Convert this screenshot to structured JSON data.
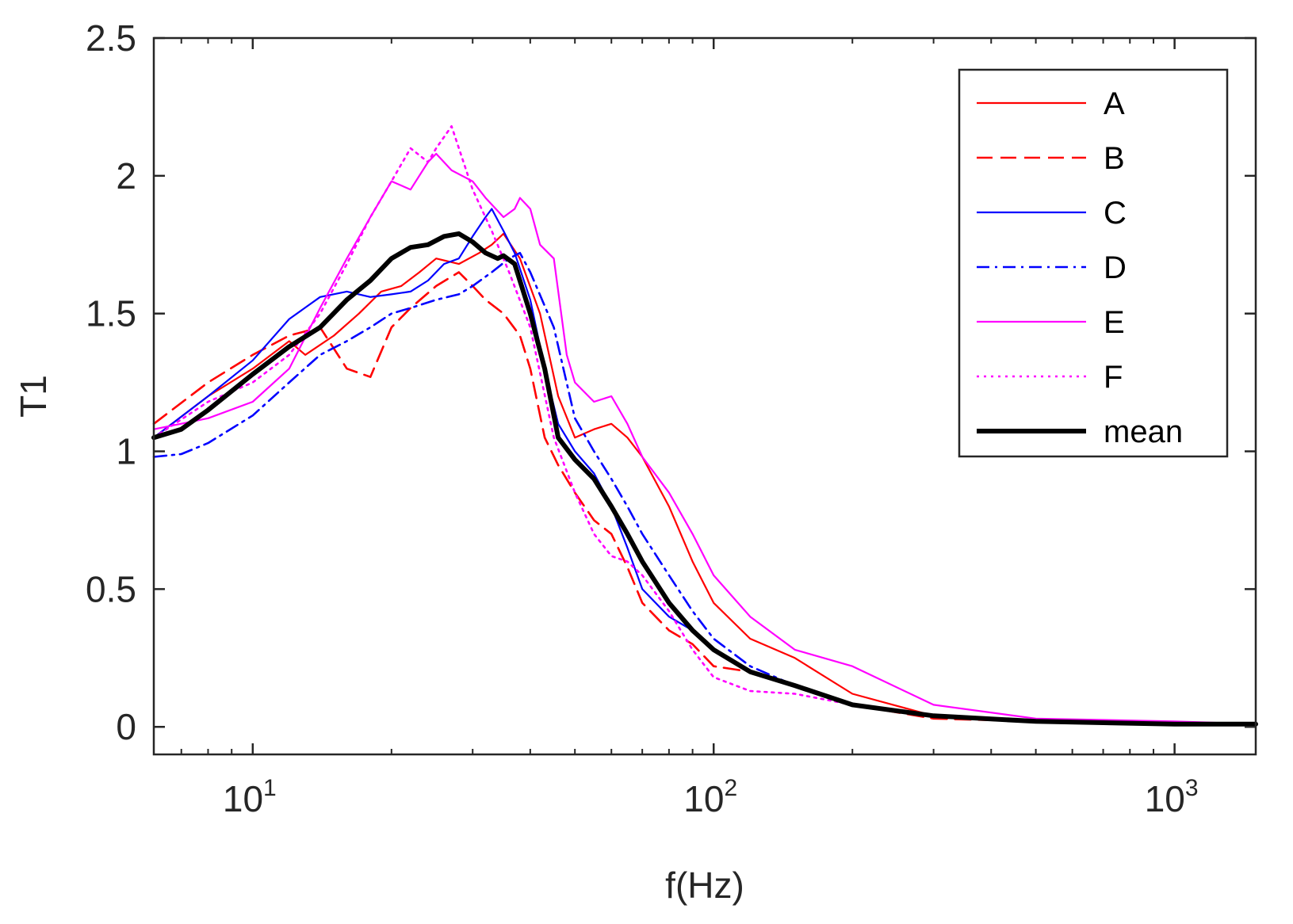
{
  "chart_data": {
    "type": "line",
    "xscale": "log",
    "xlabel": "f(Hz)",
    "ylabel": "T1",
    "xlim": [
      6.1,
      1500
    ],
    "ylim": [
      -0.1,
      2.5
    ],
    "xticks": [
      {
        "base": "10",
        "exp": "1",
        "value": 10
      },
      {
        "base": "10",
        "exp": "2",
        "value": 100
      },
      {
        "base": "10",
        "exp": "3",
        "value": 1000
      }
    ],
    "yticks": [
      {
        "label": "0",
        "value": 0
      },
      {
        "label": "0.5",
        "value": 0.5
      },
      {
        "label": "1",
        "value": 1
      },
      {
        "label": "1.5",
        "value": 1.5
      },
      {
        "label": "2",
        "value": 2
      },
      {
        "label": "2.5",
        "value": 2.5
      }
    ],
    "legend_position": "top-right",
    "series": [
      {
        "name": "A",
        "color": "#ff0000",
        "style": "solid",
        "x": [
          6.1,
          8,
          10,
          12,
          13,
          15,
          17,
          19,
          21,
          23,
          25,
          28,
          31,
          33,
          35,
          38,
          42,
          46,
          50,
          55,
          60,
          65,
          70,
          80,
          90,
          100,
          120,
          150,
          200,
          300,
          500,
          1000,
          1500
        ],
        "y": [
          1.05,
          1.2,
          1.3,
          1.4,
          1.35,
          1.42,
          1.5,
          1.58,
          1.6,
          1.65,
          1.7,
          1.68,
          1.72,
          1.75,
          1.79,
          1.7,
          1.5,
          1.2,
          1.05,
          1.08,
          1.1,
          1.05,
          0.98,
          0.8,
          0.6,
          0.45,
          0.32,
          0.25,
          0.12,
          0.04,
          0.02,
          0.01,
          0.01
        ]
      },
      {
        "name": "B",
        "color": "#ff0000",
        "style": "dashed",
        "x": [
          6.1,
          8,
          10,
          12,
          14,
          16,
          18,
          20,
          22,
          25,
          28,
          30,
          32,
          35,
          38,
          40,
          43,
          46,
          50,
          55,
          60,
          65,
          70,
          80,
          90,
          100,
          120,
          150,
          200,
          300,
          500,
          1000,
          1500
        ],
        "y": [
          1.1,
          1.25,
          1.35,
          1.42,
          1.45,
          1.3,
          1.27,
          1.45,
          1.52,
          1.6,
          1.65,
          1.6,
          1.55,
          1.5,
          1.42,
          1.3,
          1.05,
          0.95,
          0.85,
          0.75,
          0.7,
          0.58,
          0.45,
          0.35,
          0.3,
          0.22,
          0.2,
          0.15,
          0.08,
          0.03,
          0.02,
          0.01,
          0.01
        ]
      },
      {
        "name": "C",
        "color": "#0000ff",
        "style": "solid",
        "x": [
          6.1,
          8,
          10,
          12,
          14,
          16,
          18,
          20,
          22,
          24,
          26,
          28,
          30,
          32,
          33,
          35,
          37,
          40,
          43,
          46,
          50,
          55,
          60,
          65,
          70,
          80,
          90,
          100,
          120,
          150,
          200,
          300,
          500,
          1000,
          1500
        ],
        "y": [
          1.05,
          1.2,
          1.33,
          1.48,
          1.56,
          1.58,
          1.56,
          1.57,
          1.58,
          1.62,
          1.68,
          1.7,
          1.78,
          1.85,
          1.88,
          1.8,
          1.72,
          1.55,
          1.3,
          1.1,
          1.0,
          0.92,
          0.8,
          0.65,
          0.5,
          0.4,
          0.35,
          0.28,
          0.2,
          0.15,
          0.08,
          0.04,
          0.02,
          0.01,
          0.01
        ]
      },
      {
        "name": "D",
        "color": "#0000ff",
        "style": "dashdot",
        "x": [
          6.1,
          7,
          8,
          10,
          12,
          14,
          16,
          18,
          20,
          22,
          25,
          28,
          30,
          33,
          36,
          38,
          40,
          45,
          50,
          55,
          60,
          65,
          70,
          80,
          90,
          100,
          120,
          150,
          200,
          300,
          500,
          1000,
          1500
        ],
        "y": [
          0.98,
          0.99,
          1.03,
          1.13,
          1.25,
          1.35,
          1.4,
          1.45,
          1.5,
          1.52,
          1.55,
          1.57,
          1.6,
          1.65,
          1.7,
          1.72,
          1.65,
          1.45,
          1.12,
          1.0,
          0.9,
          0.8,
          0.7,
          0.55,
          0.42,
          0.32,
          0.22,
          0.15,
          0.08,
          0.04,
          0.02,
          0.01,
          0.01
        ]
      },
      {
        "name": "E",
        "color": "#ff00ff",
        "style": "solid",
        "x": [
          6.1,
          8,
          10,
          12,
          14,
          16,
          18,
          20,
          22,
          24,
          25,
          27,
          30,
          32,
          35,
          37,
          38,
          40,
          42,
          45,
          48,
          50,
          55,
          60,
          65,
          70,
          80,
          90,
          100,
          120,
          150,
          200,
          300,
          500,
          1000,
          1500
        ],
        "y": [
          1.08,
          1.12,
          1.18,
          1.3,
          1.52,
          1.7,
          1.85,
          1.98,
          1.95,
          2.05,
          2.08,
          2.02,
          1.98,
          1.92,
          1.85,
          1.88,
          1.92,
          1.88,
          1.75,
          1.7,
          1.35,
          1.25,
          1.18,
          1.2,
          1.1,
          0.98,
          0.85,
          0.7,
          0.55,
          0.4,
          0.28,
          0.22,
          0.08,
          0.03,
          0.02,
          0.01
        ]
      },
      {
        "name": "F",
        "color": "#ff00ff",
        "style": "dotted",
        "x": [
          6.1,
          8,
          10,
          12,
          14,
          16,
          18,
          20,
          22,
          24,
          25,
          27,
          30,
          33,
          36,
          40,
          45,
          50,
          55,
          60,
          65,
          70,
          80,
          90,
          100,
          120,
          150,
          200,
          300,
          500,
          1000,
          1500
        ],
        "y": [
          1.05,
          1.18,
          1.25,
          1.35,
          1.5,
          1.68,
          1.85,
          1.98,
          2.1,
          2.05,
          2.1,
          2.18,
          1.95,
          1.8,
          1.65,
          1.45,
          1.05,
          0.85,
          0.7,
          0.62,
          0.6,
          0.55,
          0.42,
          0.28,
          0.18,
          0.13,
          0.12,
          0.08,
          0.04,
          0.02,
          0.01,
          0.01
        ]
      },
      {
        "name": "mean",
        "color": "#000000",
        "style": "bold",
        "x": [
          6.1,
          7,
          8,
          10,
          12,
          14,
          16,
          18,
          20,
          22,
          24,
          26,
          28,
          30,
          32,
          34,
          35,
          37,
          40,
          43,
          46,
          50,
          55,
          60,
          65,
          70,
          80,
          90,
          100,
          120,
          150,
          200,
          300,
          500,
          1000,
          1500
        ],
        "y": [
          1.05,
          1.08,
          1.15,
          1.28,
          1.38,
          1.45,
          1.55,
          1.62,
          1.7,
          1.74,
          1.75,
          1.78,
          1.79,
          1.76,
          1.72,
          1.7,
          1.71,
          1.68,
          1.5,
          1.3,
          1.05,
          0.97,
          0.9,
          0.8,
          0.7,
          0.6,
          0.45,
          0.35,
          0.28,
          0.2,
          0.15,
          0.08,
          0.04,
          0.02,
          0.01,
          0.01
        ]
      }
    ]
  }
}
